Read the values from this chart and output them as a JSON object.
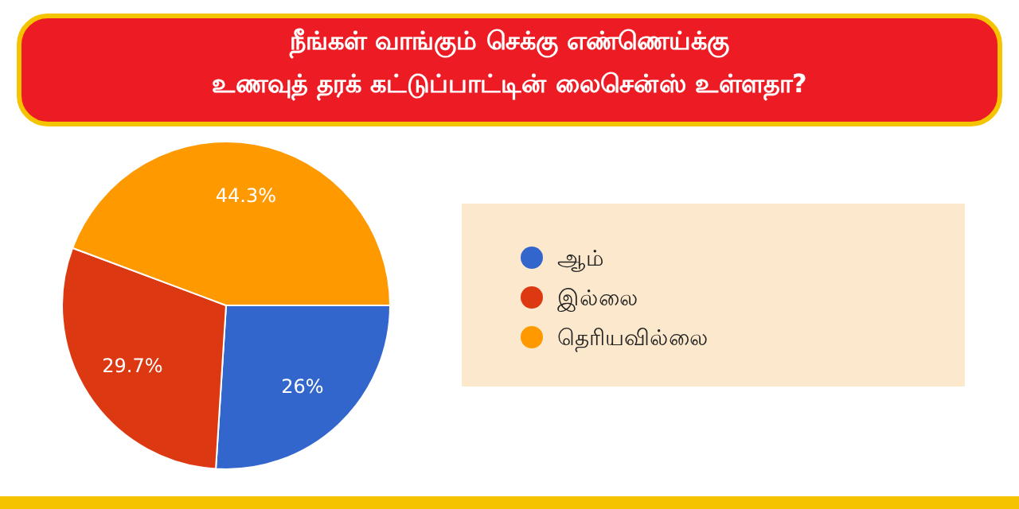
{
  "chart_data": {
    "type": "pie",
    "title": "நீங்கள் வாங்கும் செக்கு எண்ணெய்க்கு\nஉணவுத் தரக் கட்டுப்பாட்டின் லைசென்ஸ் உள்ளதா?",
    "categories": [
      "ஆம்",
      "இல்லை",
      "தெரியவில்லை"
    ],
    "values": [
      26,
      29.7,
      44.3
    ],
    "colors": [
      "#3366cc",
      "#dc3912",
      "#ff9900"
    ],
    "value_labels": [
      "26%",
      "29.7%",
      "44.3%"
    ],
    "legend": "right"
  }
}
